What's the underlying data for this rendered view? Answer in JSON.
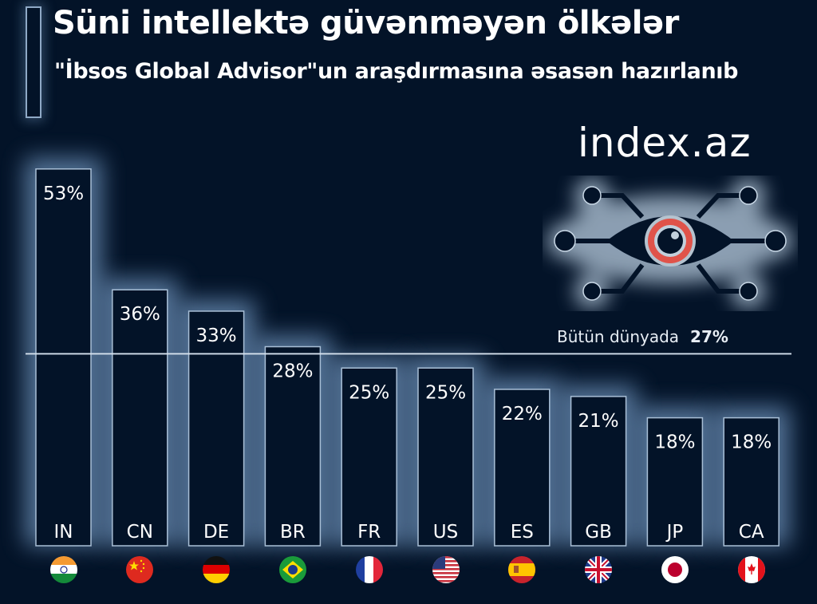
{
  "header": {
    "title": "Süni intellektə güvənməyən ölkələr",
    "subtitle": "\"İbsos Global Advisor\"un araşdırmasına əsasən hazırlanıb"
  },
  "logo": {
    "text": "index.az",
    "icon": "ai-eye-circuit-icon"
  },
  "colors": {
    "background": "#031328",
    "bar_fill": "#031328",
    "bar_stroke": "#a9bfd6",
    "glow": "#6e93bb",
    "eye_iris": "#e0534a"
  },
  "chart_data": {
    "type": "bar",
    "title": "Süni intellektə güvənməyən ölkələr",
    "subtitle": "\"İbsos Global Advisor\"un araşdırmasına əsasən hazırlanıb",
    "xlabel": "",
    "ylabel": "",
    "unit": "%",
    "ylim": [
      0,
      55
    ],
    "grid": false,
    "categories": [
      "IN",
      "CN",
      "DE",
      "BR",
      "FR",
      "US",
      "ES",
      "GB",
      "JP",
      "CA"
    ],
    "values": [
      53,
      36,
      33,
      28,
      25,
      25,
      22,
      21,
      18,
      18
    ],
    "value_labels": [
      "53%",
      "36%",
      "33%",
      "28%",
      "25%",
      "25%",
      "22%",
      "21%",
      "18%",
      "18%"
    ],
    "flags": [
      "india",
      "china",
      "germany",
      "brazil",
      "france",
      "usa",
      "spain",
      "uk",
      "japan",
      "canada"
    ],
    "reference_line": {
      "label": "Bütün dünyada",
      "value": 27,
      "value_label": "27%"
    }
  }
}
